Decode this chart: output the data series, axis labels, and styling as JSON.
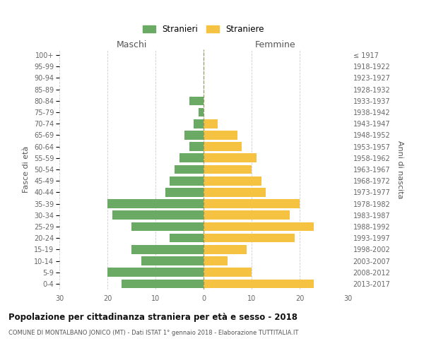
{
  "age_groups": [
    "0-4",
    "5-9",
    "10-14",
    "15-19",
    "20-24",
    "25-29",
    "30-34",
    "35-39",
    "40-44",
    "45-49",
    "50-54",
    "55-59",
    "60-64",
    "65-69",
    "70-74",
    "75-79",
    "80-84",
    "85-89",
    "90-94",
    "95-99",
    "100+"
  ],
  "birth_years": [
    "2013-2017",
    "2008-2012",
    "2003-2007",
    "1998-2002",
    "1993-1997",
    "1988-1992",
    "1983-1987",
    "1978-1982",
    "1973-1977",
    "1968-1972",
    "1963-1967",
    "1958-1962",
    "1953-1957",
    "1948-1952",
    "1943-1947",
    "1938-1942",
    "1933-1937",
    "1928-1932",
    "1923-1927",
    "1918-1922",
    "≤ 1917"
  ],
  "males": [
    17,
    20,
    13,
    15,
    7,
    15,
    19,
    20,
    8,
    7,
    6,
    5,
    3,
    4,
    2,
    1,
    3,
    0,
    0,
    0,
    0
  ],
  "females": [
    23,
    10,
    5,
    9,
    19,
    23,
    18,
    20,
    13,
    12,
    10,
    11,
    8,
    7,
    3,
    0,
    0,
    0,
    0,
    0,
    0
  ],
  "male_color": "#6aaa64",
  "female_color": "#f5c242",
  "background_color": "#ffffff",
  "grid_color": "#cccccc",
  "title": "Popolazione per cittadinanza straniera per età e sesso - 2018",
  "subtitle": "COMUNE DI MONTALBANO JONICO (MT) - Dati ISTAT 1° gennaio 2018 - Elaborazione TUTTITALIA.IT",
  "ylabel_left": "Fasce di età",
  "ylabel_right": "Anni di nascita",
  "xlabel_maschi": "Maschi",
  "xlabel_femmine": "Femmine",
  "legend_male": "Stranieri",
  "legend_female": "Straniere",
  "xlim": 30
}
